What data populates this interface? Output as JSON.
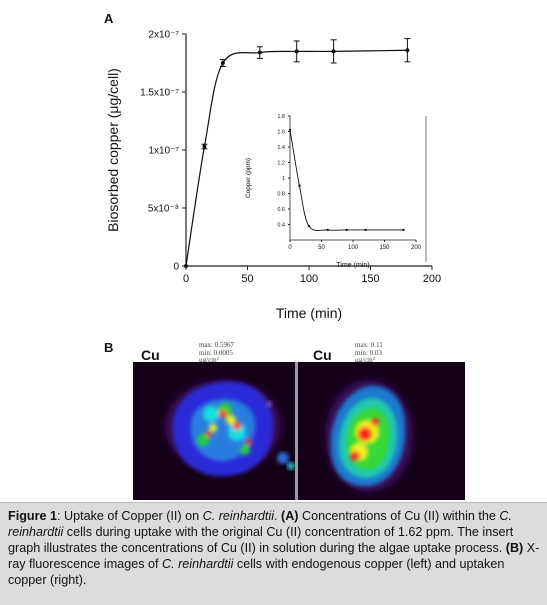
{
  "figure": {
    "panel_a_letter": "A",
    "panel_b_letter": "B"
  },
  "chart_data": [
    {
      "type": "line",
      "ylabel": "Biosorbed copper (μg/cell)",
      "xlabel": "Time (min)",
      "xlim": [
        0,
        200
      ],
      "ylim": [
        0,
        2e-07
      ],
      "x_ticks": [
        0,
        50,
        100,
        150,
        200
      ],
      "x_tick_labels": [
        "0",
        "50",
        "100",
        "150",
        "200"
      ],
      "y_ticks": [
        0,
        5e-08,
        1e-07,
        1.5e-07,
        2e-07
      ],
      "y_tick_labels": [
        "0",
        "5x10⁻⁸",
        "1x10⁻⁷",
        "1.5x10⁻⁷",
        "2x10⁻⁷"
      ],
      "series": [
        {
          "x": [
            0,
            15,
            30,
            60,
            90,
            120,
            180
          ],
          "y": [
            0,
            1.03e-07,
            1.75e-07,
            1.84e-07,
            1.85e-07,
            1.85e-07,
            1.86e-07
          ],
          "err": [
            0,
            2e-09,
            3e-09,
            5e-09,
            9e-09,
            1e-08,
            1e-08
          ]
        }
      ]
    },
    {
      "type": "line",
      "ylabel": "Copper (ppm)",
      "xlabel": "Time (min)",
      "xlim": [
        0,
        200
      ],
      "ylim": [
        0.2,
        1.8
      ],
      "x_ticks": [
        0,
        50,
        100,
        150,
        200
      ],
      "x_tick_labels": [
        "0",
        "50",
        "100",
        "150",
        "200"
      ],
      "y_ticks": [
        0.4,
        0.6,
        0.8,
        1.0,
        1.2,
        1.4,
        1.6,
        1.8
      ],
      "y_tick_labels": [
        "0.4",
        "0.6",
        "0.8",
        "1",
        "1.2",
        "1.4",
        "1.6",
        "1.8"
      ],
      "series": [
        {
          "x": [
            0,
            15,
            30,
            60,
            90,
            120,
            180
          ],
          "y": [
            1.62,
            0.9,
            0.38,
            0.33,
            0.33,
            0.33,
            0.33
          ]
        }
      ]
    }
  ],
  "panel_b": {
    "left": {
      "label": "Cu",
      "stats": [
        "max: 0.5967",
        "min: 0.0005",
        "μg/cm²"
      ]
    },
    "right": {
      "label": "Cu",
      "stats": [
        "max: 0.11",
        "min: 0.03",
        "μg/cm²"
      ]
    }
  },
  "caption": {
    "figure_label": "Figure 1",
    "p1": ": Uptake of Copper (II) on ",
    "species": "C. reinhardtii",
    "p2": ". ",
    "a_label": "(A)",
    "p3": " Concentrations of Cu (II) within the ",
    "p4": " cells during uptake with the original Cu (II) concentration of 1.62 ppm. The insert graph illustrates the concentrations of Cu (II) in solution during the algae uptake process",
    "p5": ". ",
    "b_label": "(B)",
    "p6": " X-ray fluorescence images of ",
    "p7": " cells with endogenous copper (left) and uptaken copper (right)."
  }
}
